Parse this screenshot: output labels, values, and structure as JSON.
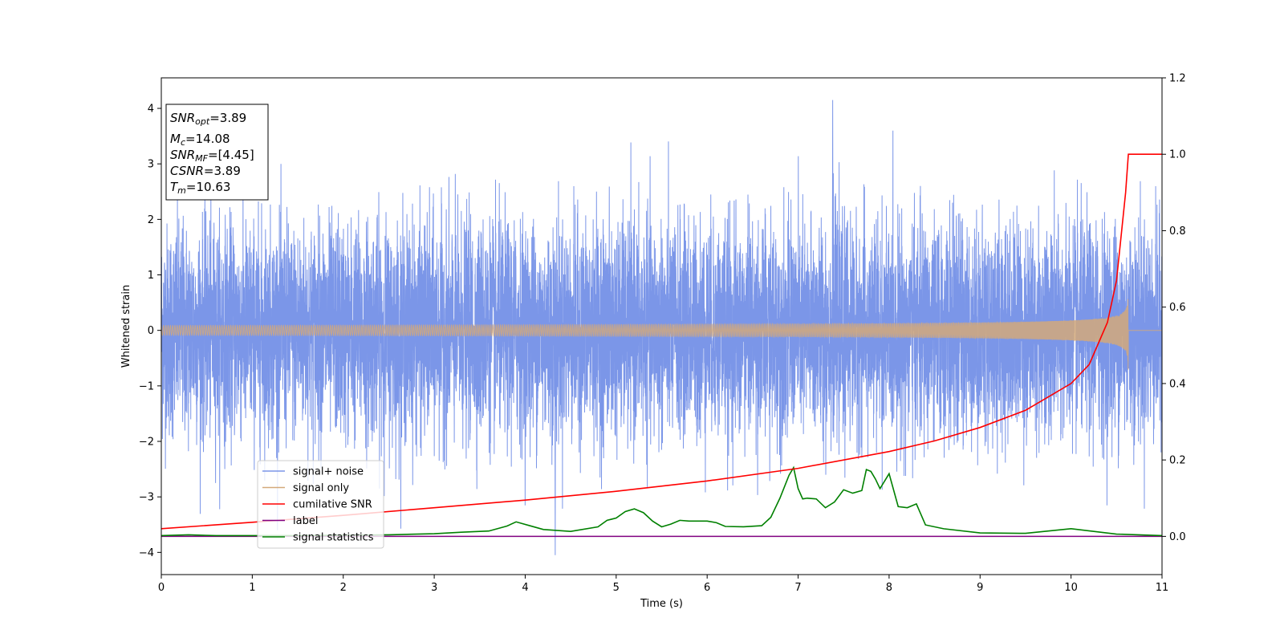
{
  "chart_data": {
    "type": "line",
    "xlabel": "Time (s)",
    "ylabel": "Whitened strain",
    "xlim": [
      0,
      11
    ],
    "ylim_left": [
      -4.4,
      4.55
    ],
    "ylim_right": [
      -0.1,
      1.2
    ],
    "x_ticks": [
      "0",
      "1",
      "2",
      "3",
      "4",
      "5",
      "6",
      "7",
      "8",
      "9",
      "10",
      "11"
    ],
    "y_left_ticks": [
      "−4",
      "−3",
      "−2",
      "−1",
      "0",
      "1",
      "2",
      "3",
      "4"
    ],
    "y_right_ticks": [
      "0.0",
      "0.2",
      "0.4",
      "0.6",
      "0.8",
      "1.0",
      "1.2"
    ],
    "legend_position": "lower-left",
    "colors": {
      "signal_noise": "#7b96e8",
      "signal_only": "#d4a97a",
      "cumulative_snr": "#ff0000",
      "label": "#800080",
      "signal_statistics": "#008000"
    },
    "series": [
      {
        "name": "signal+ noise",
        "axis": "left",
        "description_of_shape": "dense noise",
        "typical_range": [
          -1.8,
          1.8
        ],
        "peak_max": 4.15,
        "peak_max_x": 7.38,
        "peak_min": -4.05,
        "peak_min_x": 4.33
      },
      {
        "name": "signal only",
        "axis": "left",
        "chirp_end_x": 10.63,
        "chirp_peak_amplitude": 0.72
      },
      {
        "name": "cumilative SNR",
        "axis": "right",
        "x": [
          0,
          1,
          2,
          3,
          4,
          5,
          6,
          7,
          8,
          8.5,
          9,
          9.5,
          10,
          10.2,
          10.4,
          10.5,
          10.6,
          10.63,
          11
        ],
        "y": [
          0.02,
          0.037,
          0.055,
          0.075,
          0.095,
          0.118,
          0.145,
          0.178,
          0.222,
          0.25,
          0.285,
          0.33,
          0.4,
          0.45,
          0.56,
          0.67,
          0.9,
          1.0,
          1.0
        ]
      },
      {
        "name": "label",
        "axis": "right",
        "x": [
          0,
          11
        ],
        "y": [
          0,
          0
        ]
      },
      {
        "name": "signal statistics",
        "axis": "right",
        "x": [
          0,
          0.3,
          0.6,
          1,
          1.5,
          2,
          2.5,
          2.8,
          3,
          3.3,
          3.6,
          3.8,
          3.9,
          4.05,
          4.2,
          4.5,
          4.8,
          4.9,
          5.0,
          5.1,
          5.2,
          5.3,
          5.4,
          5.5,
          5.6,
          5.7,
          5.8,
          6.0,
          6.1,
          6.2,
          6.4,
          6.6,
          6.7,
          6.8,
          6.9,
          6.95,
          7.0,
          7.05,
          7.1,
          7.2,
          7.3,
          7.4,
          7.5,
          7.6,
          7.7,
          7.75,
          7.8,
          7.85,
          7.9,
          8.0,
          8.1,
          8.2,
          8.3,
          8.4,
          8.6,
          9.0,
          9.5,
          10.0,
          10.5,
          11
        ],
        "y": [
          0.002,
          0.004,
          0.002,
          0.002,
          0.002,
          0.003,
          0.004,
          0.006,
          0.007,
          0.011,
          0.014,
          0.027,
          0.038,
          0.028,
          0.018,
          0.013,
          0.025,
          0.042,
          0.048,
          0.065,
          0.072,
          0.062,
          0.04,
          0.025,
          0.032,
          0.042,
          0.04,
          0.04,
          0.036,
          0.026,
          0.025,
          0.028,
          0.05,
          0.1,
          0.16,
          0.18,
          0.125,
          0.098,
          0.1,
          0.098,
          0.075,
          0.09,
          0.122,
          0.113,
          0.12,
          0.175,
          0.17,
          0.15,
          0.125,
          0.164,
          0.078,
          0.075,
          0.085,
          0.03,
          0.02,
          0.009,
          0.008,
          0.02,
          0.006,
          0.002
        ]
      }
    ],
    "annotation_box": {
      "lines": [
        {
          "var": "SNR",
          "sub": "opt",
          "value": "=3.89"
        },
        {
          "var": "M",
          "sub": "c",
          "value": "=14.08"
        },
        {
          "var": "SNR",
          "sub": "MF",
          "value": "=[4.45]"
        },
        {
          "var": "CSNR",
          "sub": "",
          "value": "=3.89"
        },
        {
          "var": "T",
          "sub": "m",
          "value": "=10.63"
        }
      ]
    }
  }
}
